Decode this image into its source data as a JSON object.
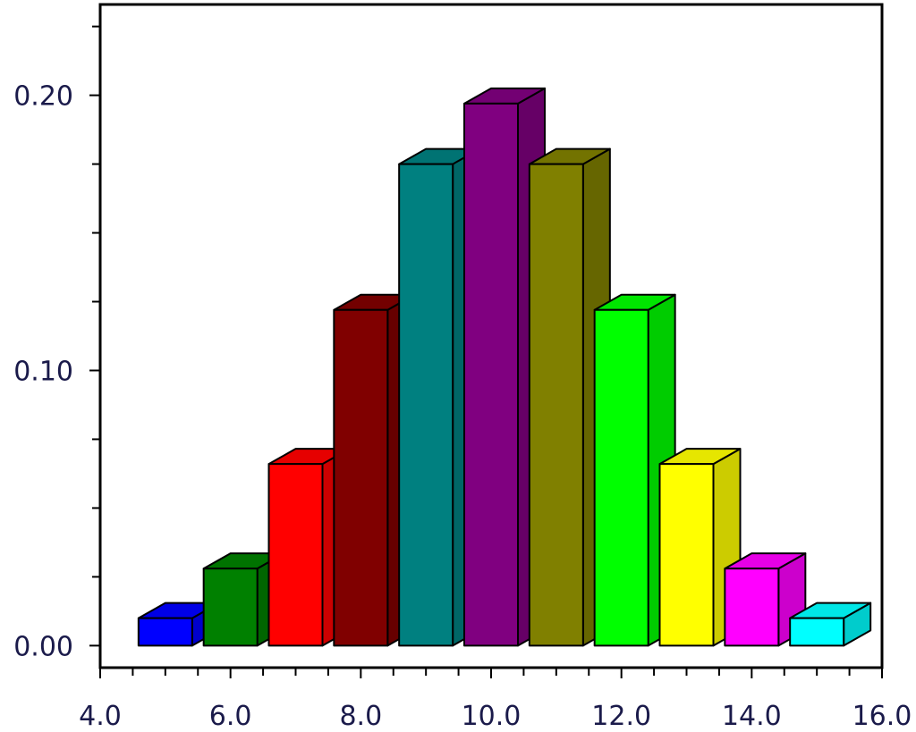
{
  "chart_data": {
    "type": "bar",
    "style": "3d",
    "title": "",
    "xlabel": "",
    "ylabel": "",
    "xlim": [
      4.0,
      16.0
    ],
    "ylim": [
      -0.008,
      0.233
    ],
    "grid": false,
    "legend": "none",
    "x_ticks": [
      4.0,
      6.0,
      8.0,
      10.0,
      12.0,
      14.0,
      16.0
    ],
    "x_tick_labels": [
      "4.0",
      "6.0",
      "8.0",
      "10.0",
      "12.0",
      "14.0",
      "16.0"
    ],
    "y_ticks": [
      0.0,
      0.1,
      0.2
    ],
    "y_tick_labels": [
      "0.00",
      "0.10",
      "0.20"
    ],
    "x": [
      5,
      6,
      7,
      8,
      9,
      10,
      11,
      12,
      13,
      14,
      15
    ],
    "values": [
      0.01,
      0.028,
      0.066,
      0.122,
      0.175,
      0.197,
      0.175,
      0.122,
      0.066,
      0.028,
      0.01
    ],
    "colors": [
      "#0000ff",
      "#008000",
      "#ff0000",
      "#800000",
      "#008080",
      "#800080",
      "#808000",
      "#00ff00",
      "#ffff00",
      "#ff00ff",
      "#00ffff"
    ]
  }
}
